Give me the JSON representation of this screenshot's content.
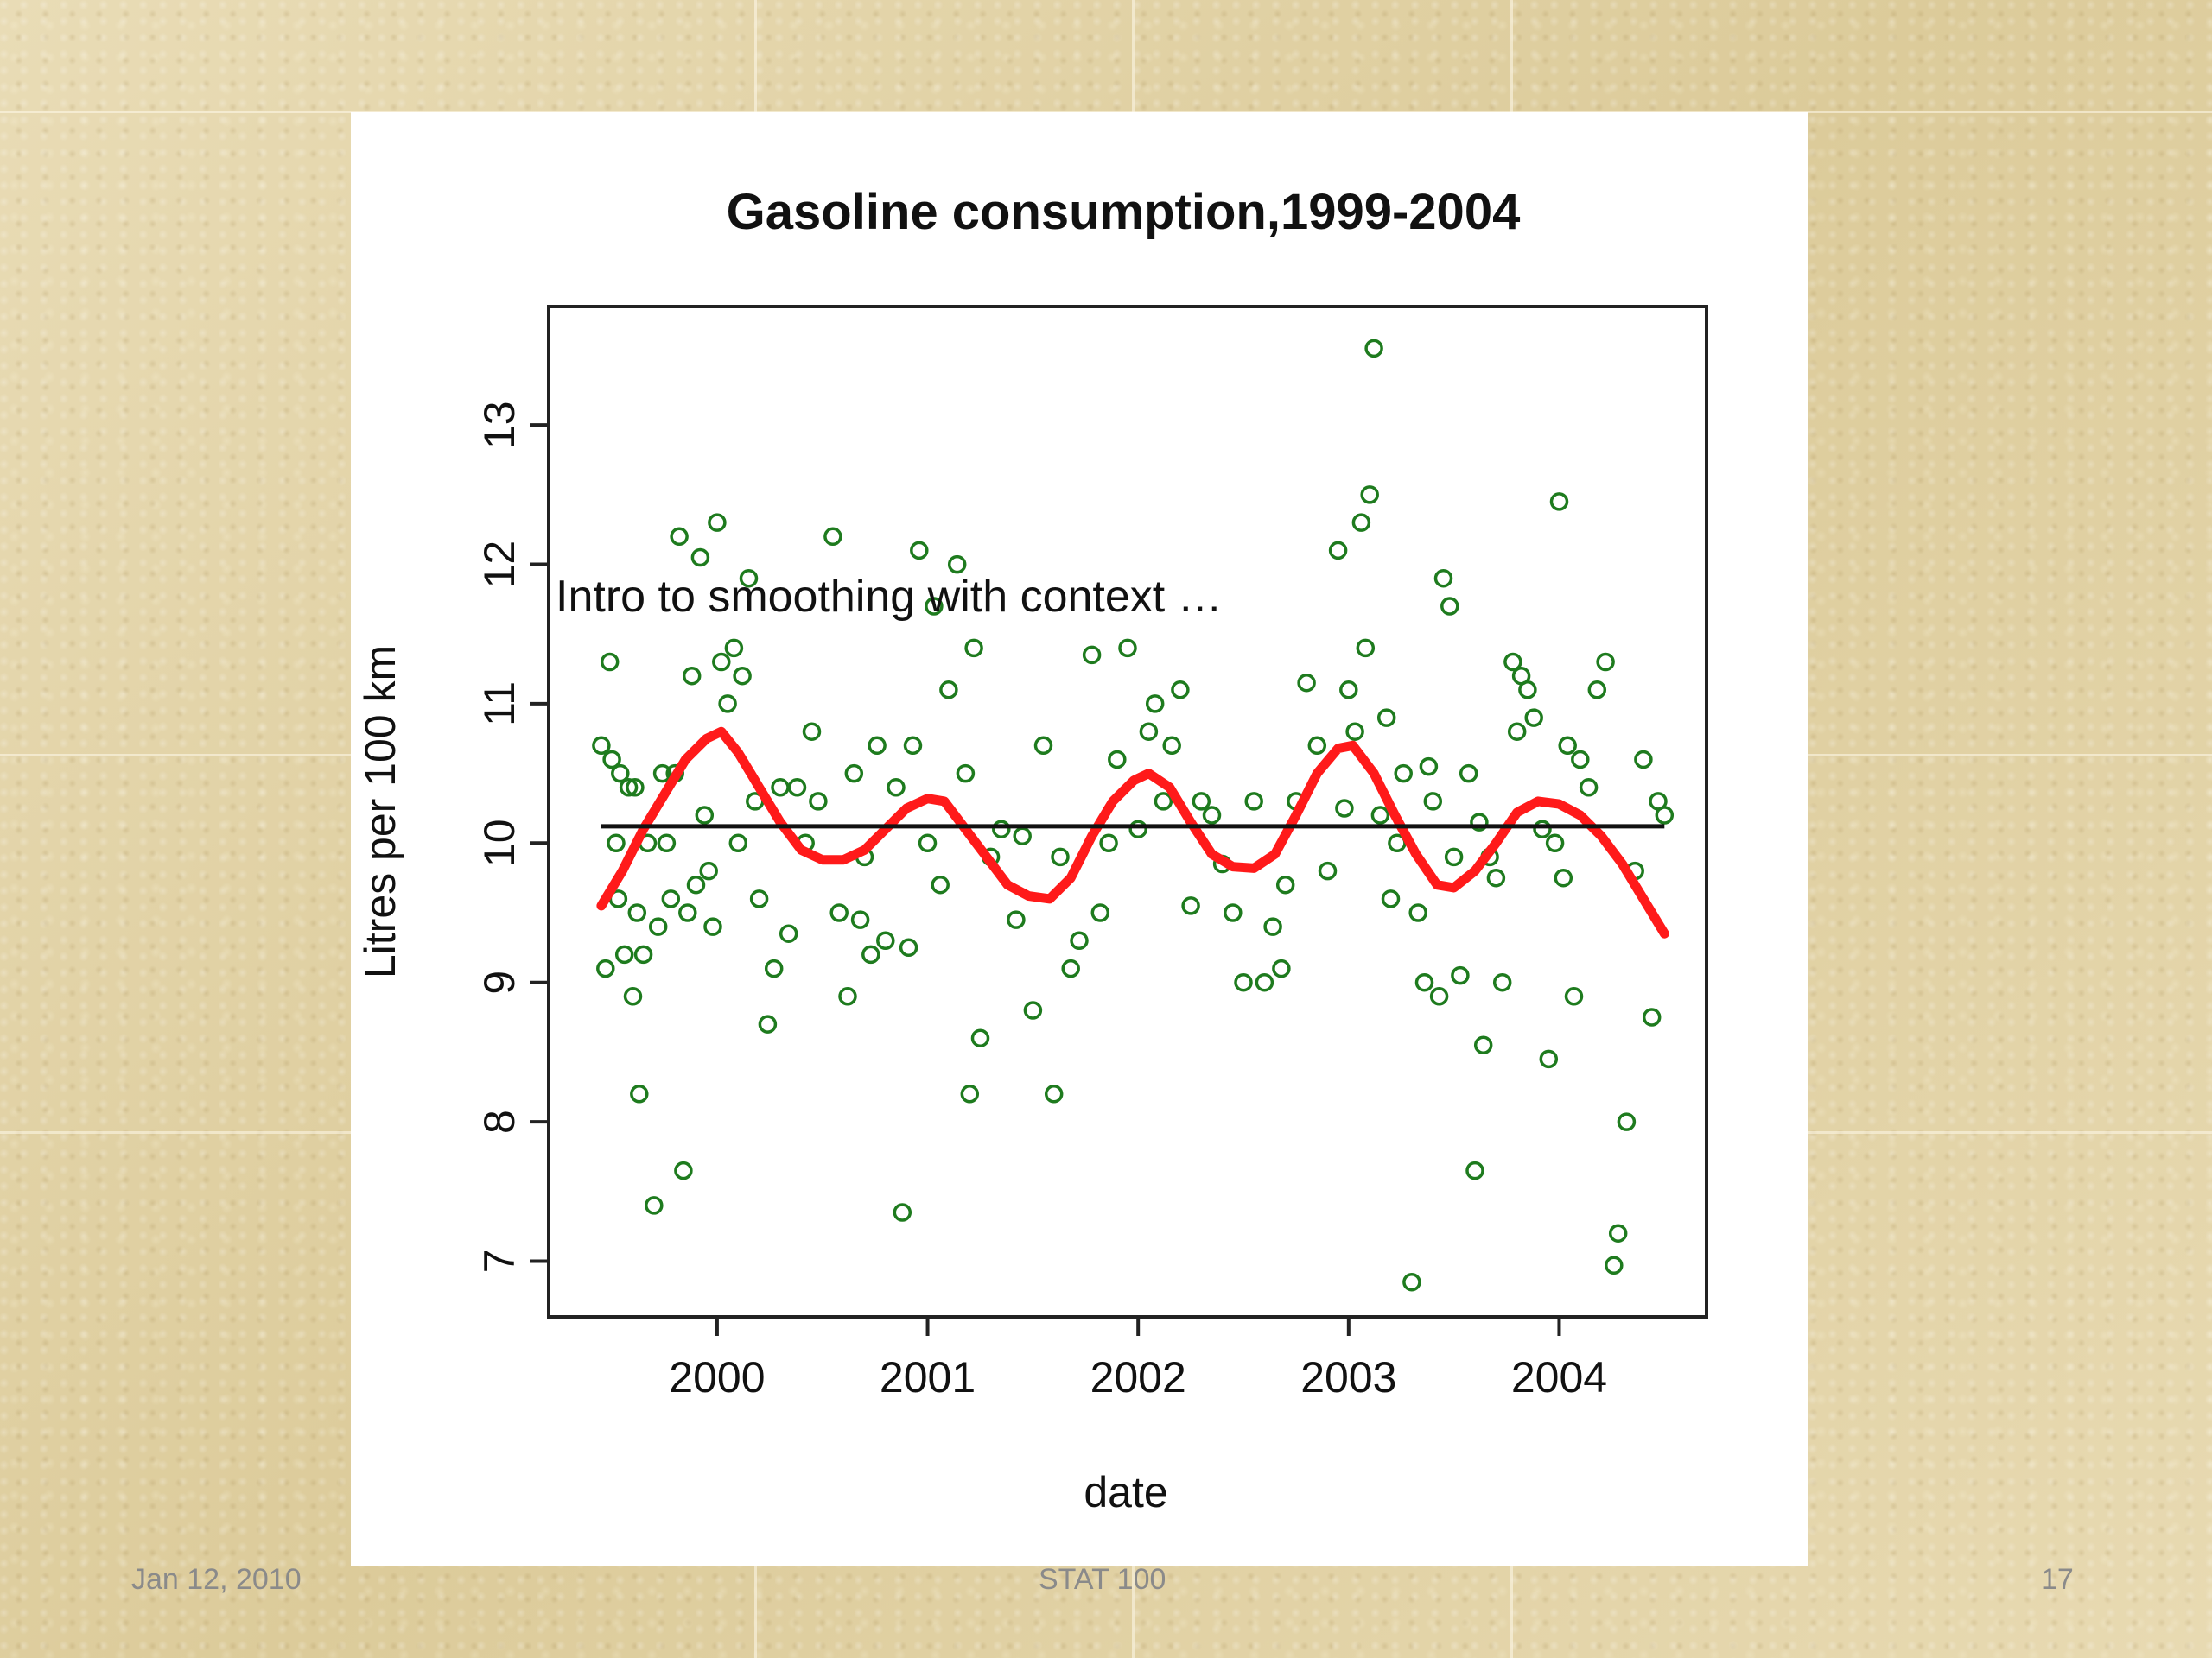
{
  "slide": {
    "overlay_text": "Intro to smoothing with context …",
    "footer_left": "Jan 12, 2010",
    "footer_center": "STAT 100",
    "footer_right": "17"
  },
  "colors": {
    "points": "#1e7b1e",
    "smooth": "#ff1a1a",
    "mean_line": "#111111",
    "plot_bg": "#ffffff"
  },
  "chart_data": {
    "type": "scatter",
    "title": "Gasoline consumption,1999-2004",
    "xlabel": "date",
    "ylabel": "Litres per 100 km",
    "xlim": [
      1999.2,
      2004.7
    ],
    "ylim": [
      6.6,
      13.85
    ],
    "xticks": [
      2000,
      2001,
      2002,
      2003,
      2004
    ],
    "yticks": [
      7,
      8,
      9,
      10,
      11,
      12,
      13
    ],
    "grid": false,
    "series": [
      {
        "kind": "points",
        "points": [
          [
            1999.45,
            10.7
          ],
          [
            1999.47,
            9.1
          ],
          [
            1999.49,
            11.3
          ],
          [
            1999.5,
            10.6
          ],
          [
            1999.52,
            10.0
          ],
          [
            1999.53,
            9.6
          ],
          [
            1999.54,
            10.5
          ],
          [
            1999.56,
            9.2
          ],
          [
            1999.58,
            10.4
          ],
          [
            1999.6,
            8.9
          ],
          [
            1999.61,
            10.4
          ],
          [
            1999.62,
            9.5
          ],
          [
            1999.63,
            8.2
          ],
          [
            1999.65,
            9.2
          ],
          [
            1999.67,
            10.0
          ],
          [
            1999.7,
            7.4
          ],
          [
            1999.72,
            9.4
          ],
          [
            1999.74,
            10.5
          ],
          [
            1999.76,
            10.0
          ],
          [
            1999.78,
            9.6
          ],
          [
            1999.8,
            10.5
          ],
          [
            1999.82,
            12.2
          ],
          [
            1999.84,
            7.65
          ],
          [
            1999.86,
            9.5
          ],
          [
            1999.88,
            11.2
          ],
          [
            1999.9,
            9.7
          ],
          [
            1999.92,
            12.05
          ],
          [
            1999.94,
            10.2
          ],
          [
            1999.96,
            9.8
          ],
          [
            1999.98,
            9.4
          ],
          [
            2000.0,
            12.3
          ],
          [
            2000.02,
            11.3
          ],
          [
            2000.05,
            11.0
          ],
          [
            2000.08,
            11.4
          ],
          [
            2000.1,
            10.0
          ],
          [
            2000.12,
            11.2
          ],
          [
            2000.15,
            11.9
          ],
          [
            2000.18,
            10.3
          ],
          [
            2000.2,
            9.6
          ],
          [
            2000.24,
            8.7
          ],
          [
            2000.27,
            9.1
          ],
          [
            2000.3,
            10.4
          ],
          [
            2000.34,
            9.35
          ],
          [
            2000.38,
            10.4
          ],
          [
            2000.42,
            10.0
          ],
          [
            2000.45,
            10.8
          ],
          [
            2000.48,
            10.3
          ],
          [
            2000.55,
            12.2
          ],
          [
            2000.58,
            9.5
          ],
          [
            2000.62,
            8.9
          ],
          [
            2000.65,
            10.5
          ],
          [
            2000.7,
            9.9
          ],
          [
            2000.73,
            9.2
          ],
          [
            2000.76,
            10.7
          ],
          [
            2000.8,
            9.3
          ],
          [
            2000.85,
            10.4
          ],
          [
            2000.88,
            7.35
          ],
          [
            2000.91,
            9.25
          ],
          [
            2000.93,
            10.7
          ],
          [
            2000.96,
            12.1
          ],
          [
            2001.0,
            10.0
          ],
          [
            2001.03,
            11.7
          ],
          [
            2001.06,
            9.7
          ],
          [
            2001.1,
            11.1
          ],
          [
            2001.14,
            12.0
          ],
          [
            2001.18,
            10.5
          ],
          [
            2001.2,
            8.2
          ],
          [
            2001.22,
            11.4
          ],
          [
            2001.25,
            8.6
          ],
          [
            2001.3,
            9.9
          ],
          [
            2001.35,
            10.1
          ],
          [
            2001.42,
            9.45
          ],
          [
            2001.5,
            8.8
          ],
          [
            2001.55,
            10.7
          ],
          [
            2001.6,
            8.2
          ],
          [
            2001.63,
            9.9
          ],
          [
            2001.68,
            9.1
          ],
          [
            2001.72,
            9.3
          ],
          [
            2001.78,
            11.35
          ],
          [
            2001.82,
            9.5
          ],
          [
            2001.86,
            10.0
          ],
          [
            2001.9,
            10.6
          ],
          [
            2001.95,
            11.4
          ],
          [
            2002.0,
            10.1
          ],
          [
            2002.05,
            10.8
          ],
          [
            2002.08,
            11.0
          ],
          [
            2002.12,
            10.3
          ],
          [
            2002.16,
            10.7
          ],
          [
            2002.2,
            11.1
          ],
          [
            2002.25,
            9.55
          ],
          [
            2002.3,
            10.3
          ],
          [
            2002.35,
            10.2
          ],
          [
            2002.45,
            9.5
          ],
          [
            2002.5,
            9.0
          ],
          [
            2002.55,
            10.3
          ],
          [
            2002.6,
            9.0
          ],
          [
            2002.64,
            9.4
          ],
          [
            2002.68,
            9.1
          ],
          [
            2002.7,
            9.7
          ],
          [
            2002.75,
            10.3
          ],
          [
            2002.8,
            11.15
          ],
          [
            2002.85,
            10.7
          ],
          [
            2002.9,
            9.8
          ],
          [
            2002.95,
            12.1
          ],
          [
            2003.0,
            11.1
          ],
          [
            2003.03,
            10.8
          ],
          [
            2003.06,
            12.3
          ],
          [
            2003.08,
            11.4
          ],
          [
            2003.1,
            12.5
          ],
          [
            2003.12,
            13.55
          ],
          [
            2003.15,
            10.2
          ],
          [
            2003.18,
            10.9
          ],
          [
            2003.2,
            9.6
          ],
          [
            2003.23,
            10.0
          ],
          [
            2003.26,
            10.5
          ],
          [
            2003.3,
            6.85
          ],
          [
            2003.33,
            9.5
          ],
          [
            2003.36,
            9.0
          ],
          [
            2003.4,
            10.3
          ],
          [
            2003.43,
            8.9
          ],
          [
            2003.45,
            11.9
          ],
          [
            2003.48,
            11.7
          ],
          [
            2003.5,
            9.9
          ],
          [
            2003.53,
            9.05
          ],
          [
            2003.57,
            10.5
          ],
          [
            2003.6,
            7.65
          ],
          [
            2003.64,
            8.55
          ],
          [
            2003.67,
            9.9
          ],
          [
            2003.7,
            9.75
          ],
          [
            2003.73,
            9.0
          ],
          [
            2003.78,
            11.3
          ],
          [
            2003.8,
            10.8
          ],
          [
            2003.82,
            11.2
          ],
          [
            2003.85,
            11.1
          ],
          [
            2003.88,
            10.9
          ],
          [
            2003.92,
            10.1
          ],
          [
            2003.95,
            8.45
          ],
          [
            2004.0,
            12.45
          ],
          [
            2004.04,
            10.7
          ],
          [
            2004.07,
            8.9
          ],
          [
            2004.1,
            10.6
          ],
          [
            2004.14,
            10.4
          ],
          [
            2004.18,
            11.1
          ],
          [
            2004.22,
            11.3
          ],
          [
            2004.26,
            6.97
          ],
          [
            2004.28,
            7.2
          ],
          [
            2004.32,
            8.0
          ],
          [
            2004.36,
            9.8
          ],
          [
            2004.4,
            10.6
          ],
          [
            2004.44,
            8.75
          ],
          [
            2004.47,
            10.3
          ],
          [
            2004.5,
            10.2
          ],
          [
            2004.02,
            9.75
          ],
          [
            2003.98,
            10.0
          ],
          [
            2003.62,
            10.15
          ],
          [
            2003.38,
            10.55
          ],
          [
            2002.98,
            10.25
          ],
          [
            2002.4,
            9.85
          ],
          [
            2001.45,
            10.05
          ],
          [
            2000.68,
            9.45
          ]
        ]
      },
      {
        "kind": "smooth",
        "points": [
          [
            1999.45,
            9.55
          ],
          [
            1999.55,
            9.8
          ],
          [
            1999.65,
            10.1
          ],
          [
            1999.75,
            10.35
          ],
          [
            1999.85,
            10.6
          ],
          [
            1999.95,
            10.75
          ],
          [
            2000.02,
            10.8
          ],
          [
            2000.1,
            10.65
          ],
          [
            2000.2,
            10.4
          ],
          [
            2000.3,
            10.15
          ],
          [
            2000.4,
            9.95
          ],
          [
            2000.5,
            9.88
          ],
          [
            2000.6,
            9.88
          ],
          [
            2000.7,
            9.95
          ],
          [
            2000.8,
            10.1
          ],
          [
            2000.9,
            10.25
          ],
          [
            2001.0,
            10.32
          ],
          [
            2001.08,
            10.3
          ],
          [
            2001.18,
            10.1
          ],
          [
            2001.28,
            9.9
          ],
          [
            2001.38,
            9.7
          ],
          [
            2001.48,
            9.62
          ],
          [
            2001.58,
            9.6
          ],
          [
            2001.68,
            9.75
          ],
          [
            2001.78,
            10.05
          ],
          [
            2001.88,
            10.3
          ],
          [
            2001.98,
            10.45
          ],
          [
            2002.05,
            10.5
          ],
          [
            2002.15,
            10.4
          ],
          [
            2002.25,
            10.15
          ],
          [
            2002.35,
            9.92
          ],
          [
            2002.45,
            9.83
          ],
          [
            2002.55,
            9.82
          ],
          [
            2002.65,
            9.92
          ],
          [
            2002.75,
            10.2
          ],
          [
            2002.85,
            10.5
          ],
          [
            2002.95,
            10.68
          ],
          [
            2003.02,
            10.7
          ],
          [
            2003.12,
            10.5
          ],
          [
            2003.22,
            10.2
          ],
          [
            2003.32,
            9.92
          ],
          [
            2003.42,
            9.7
          ],
          [
            2003.5,
            9.68
          ],
          [
            2003.6,
            9.8
          ],
          [
            2003.7,
            10.0
          ],
          [
            2003.8,
            10.22
          ],
          [
            2003.9,
            10.3
          ],
          [
            2004.0,
            10.28
          ],
          [
            2004.1,
            10.2
          ],
          [
            2004.2,
            10.05
          ],
          [
            2004.3,
            9.85
          ],
          [
            2004.4,
            9.6
          ],
          [
            2004.5,
            9.35
          ]
        ]
      },
      {
        "kind": "mean",
        "points": [
          [
            1999.45,
            10.12
          ],
          [
            2004.5,
            10.12
          ]
        ]
      }
    ]
  }
}
